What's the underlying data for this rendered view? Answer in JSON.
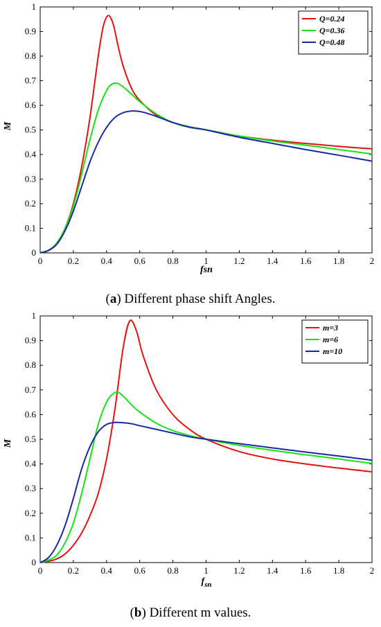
{
  "chart_data": [
    {
      "type": "line",
      "panel_label": "a",
      "caption": "Different phase shift Angles.",
      "xlabel": "fsn",
      "ylabel": "M",
      "xlim": [
        0,
        2
      ],
      "ylim": [
        0,
        1
      ],
      "x_ticks": [
        "0",
        "0.2",
        "0.4",
        "0.6",
        "0.8",
        "1",
        "1.2",
        "1.4",
        "1.6",
        "1.8",
        "2"
      ],
      "y_ticks": [
        "0",
        "0.1",
        "0.2",
        "0.3",
        "0.4",
        "0.5",
        "0.6",
        "0.7",
        "0.8",
        "0.9",
        "1"
      ],
      "grid": false,
      "legend_position": "top-right",
      "series": [
        {
          "name": "Q=0.24",
          "color": "#e3120b",
          "x": [
            0,
            0.05,
            0.1,
            0.15,
            0.2,
            0.25,
            0.3,
            0.35,
            0.38,
            0.41,
            0.44,
            0.47,
            0.5,
            0.55,
            0.6,
            0.7,
            0.8,
            0.9,
            1.0,
            1.2,
            1.4,
            1.6,
            1.8,
            2.0
          ],
          "y": [
            0,
            0.01,
            0.04,
            0.1,
            0.2,
            0.35,
            0.55,
            0.8,
            0.92,
            0.965,
            0.93,
            0.84,
            0.76,
            0.67,
            0.62,
            0.56,
            0.53,
            0.51,
            0.5,
            0.475,
            0.458,
            0.445,
            0.433,
            0.423
          ]
        },
        {
          "name": "Q=0.36",
          "color": "#18e018",
          "x": [
            0,
            0.05,
            0.1,
            0.15,
            0.2,
            0.25,
            0.3,
            0.35,
            0.4,
            0.43,
            0.46,
            0.5,
            0.55,
            0.6,
            0.7,
            0.8,
            0.9,
            1.0,
            1.2,
            1.4,
            1.6,
            1.8,
            2.0
          ],
          "y": [
            0,
            0.01,
            0.04,
            0.1,
            0.19,
            0.32,
            0.46,
            0.58,
            0.66,
            0.685,
            0.69,
            0.675,
            0.645,
            0.615,
            0.565,
            0.53,
            0.51,
            0.5,
            0.475,
            0.455,
            0.438,
            0.42,
            0.402
          ]
        },
        {
          "name": "Q=0.48",
          "color": "#1628a8",
          "x": [
            0,
            0.05,
            0.1,
            0.15,
            0.2,
            0.25,
            0.3,
            0.35,
            0.4,
            0.45,
            0.5,
            0.56,
            0.62,
            0.7,
            0.8,
            0.9,
            1.0,
            1.2,
            1.4,
            1.6,
            1.8,
            2.0
          ],
          "y": [
            0,
            0.01,
            0.035,
            0.09,
            0.17,
            0.27,
            0.37,
            0.45,
            0.51,
            0.55,
            0.57,
            0.577,
            0.572,
            0.555,
            0.53,
            0.512,
            0.5,
            0.47,
            0.445,
            0.42,
            0.397,
            0.373
          ]
        }
      ]
    },
    {
      "type": "line",
      "panel_label": "b",
      "caption": "Different m values.",
      "xlabel": "f",
      "xlabel_sub": "sn",
      "ylabel": "M",
      "xlim": [
        0,
        2
      ],
      "ylim": [
        0,
        1
      ],
      "x_ticks": [
        "0",
        "0.2",
        "0.4",
        "0.6",
        "0.8",
        "1",
        "1.2",
        "1.4",
        "1.6",
        "1.8",
        "2"
      ],
      "y_ticks": [
        "0",
        "0.1",
        "0.2",
        "0.3",
        "0.4",
        "0.5",
        "0.6",
        "0.7",
        "0.8",
        "0.9",
        "1"
      ],
      "grid": false,
      "legend_position": "top-right",
      "series": [
        {
          "name": "m=3",
          "color": "#e3120b",
          "x": [
            0,
            0.05,
            0.1,
            0.15,
            0.2,
            0.25,
            0.3,
            0.35,
            0.4,
            0.45,
            0.5,
            0.54,
            0.58,
            0.62,
            0.7,
            0.8,
            0.9,
            1.0,
            1.2,
            1.4,
            1.6,
            1.8,
            2.0
          ],
          "y": [
            0,
            0.005,
            0.015,
            0.035,
            0.07,
            0.12,
            0.19,
            0.28,
            0.42,
            0.62,
            0.87,
            0.98,
            0.94,
            0.84,
            0.7,
            0.6,
            0.54,
            0.5,
            0.45,
            0.42,
            0.4,
            0.383,
            0.368
          ]
        },
        {
          "name": "m=6",
          "color": "#18e018",
          "x": [
            0,
            0.05,
            0.1,
            0.15,
            0.2,
            0.25,
            0.3,
            0.35,
            0.4,
            0.44,
            0.47,
            0.5,
            0.55,
            0.6,
            0.7,
            0.8,
            0.9,
            1.0,
            1.2,
            1.4,
            1.6,
            1.8,
            2.0
          ],
          "y": [
            0,
            0.01,
            0.03,
            0.08,
            0.16,
            0.28,
            0.42,
            0.56,
            0.65,
            0.685,
            0.69,
            0.675,
            0.64,
            0.61,
            0.565,
            0.535,
            0.515,
            0.5,
            0.475,
            0.455,
            0.437,
            0.42,
            0.402
          ]
        },
        {
          "name": "m=10",
          "color": "#1628a8",
          "x": [
            0,
            0.05,
            0.1,
            0.15,
            0.2,
            0.25,
            0.3,
            0.35,
            0.4,
            0.45,
            0.5,
            0.55,
            0.6,
            0.7,
            0.8,
            0.9,
            1.0,
            1.2,
            1.4,
            1.6,
            1.8,
            2.0
          ],
          "y": [
            0,
            0.02,
            0.07,
            0.15,
            0.26,
            0.38,
            0.47,
            0.53,
            0.56,
            0.568,
            0.567,
            0.563,
            0.555,
            0.54,
            0.525,
            0.51,
            0.5,
            0.482,
            0.465,
            0.448,
            0.432,
            0.415
          ]
        }
      ]
    }
  ]
}
